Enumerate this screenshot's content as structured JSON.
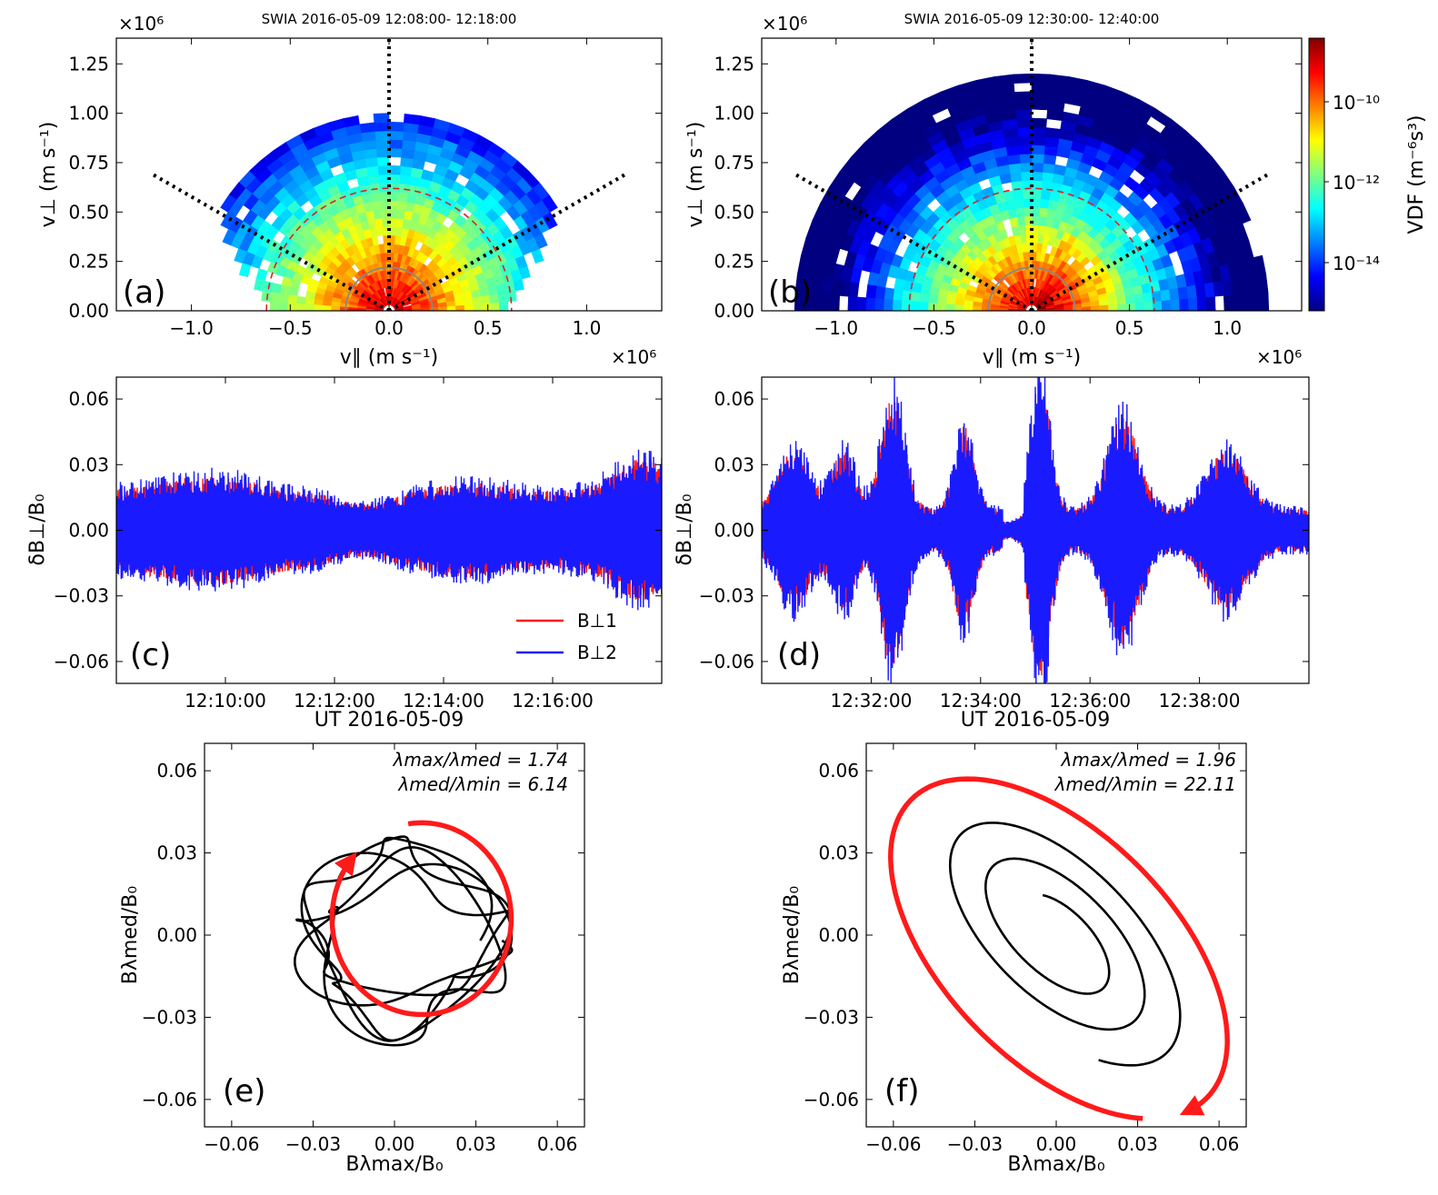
{
  "figure": {
    "panels": {
      "a": {
        "label": "(a)",
        "title": "SWIA 2016-05-09 12:08:00- 12:18:00",
        "xlabel": "v∥ (m s⁻¹)",
        "ylabel": "v⊥ (m s⁻¹)",
        "xscale": "×10⁶",
        "yscale": "×10⁶"
      },
      "b": {
        "label": "(b)",
        "title": "SWIA 2016-05-09 12:30:00- 12:40:00",
        "xlabel": "v∥ (m s⁻¹)",
        "ylabel": "v⊥ (m s⁻¹)",
        "xscale": "×10⁶",
        "yscale": "×10⁶",
        "colorbar_label": "VDF (m⁻⁶s³)",
        "colorbar_ticks": [
          "10⁻¹⁰",
          "10⁻¹²",
          "10⁻¹⁴"
        ]
      },
      "c": {
        "label": "(c)",
        "xlabel": "UT 2016-05-09",
        "ylabel": "δB⊥/B₀",
        "legend": [
          "B⊥1",
          "B⊥2"
        ]
      },
      "d": {
        "label": "(d)",
        "xlabel": "UT 2016-05-09",
        "ylabel": "δB⊥/B₀"
      },
      "e": {
        "label": "(e)",
        "xlabel": "Bλmax/B₀",
        "ylabel": "Bλmed/B₀",
        "annotation1": "λmax/λmed = 1.74",
        "annotation2": "λmed/λmin = 6.14"
      },
      "f": {
        "label": "(f)",
        "xlabel": "Bλmax/B₀",
        "ylabel": "Bλmed/B₀",
        "annotation1": "λmax/λmed = 1.96",
        "annotation2": "λmed/λmin = 22.11"
      }
    }
  },
  "chart_data": [
    {
      "panel": "a",
      "type": "heatmap",
      "title": "SWIA 2016-05-09 12:08:00- 12:18:00",
      "xlabel": "v∥ (m s⁻¹)",
      "ylabel": "v⊥ (m s⁻¹)",
      "x_ticks": [
        "−1.0",
        "−0.5",
        "0.0",
        "0.5",
        "1.0"
      ],
      "y_ticks": [
        "0.00",
        "0.25",
        "0.50",
        "0.75",
        "1.00",
        "1.25"
      ],
      "xlim": [
        -1.38,
        1.38
      ],
      "ylim": [
        0,
        1.38
      ],
      "scale_factor": "×10⁶",
      "max_speed": 1.0,
      "dashed_circle_radius": 0.62,
      "solid_circle_radius": 0.22,
      "dotted_line_angles_deg": [
        30,
        90,
        150
      ],
      "colormap": "jet",
      "color_scale": "log"
    },
    {
      "panel": "b",
      "type": "heatmap",
      "title": "SWIA 2016-05-09 12:30:00- 12:40:00",
      "xlabel": "v∥ (m s⁻¹)",
      "ylabel": "v⊥ (m s⁻¹)",
      "x_ticks": [
        "−1.0",
        "−0.5",
        "0.0",
        "0.5",
        "1.0"
      ],
      "y_ticks": [
        "0.00",
        "0.25",
        "0.50",
        "0.75",
        "1.00",
        "1.25"
      ],
      "xlim": [
        -1.38,
        1.38
      ],
      "ylim": [
        0,
        1.38
      ],
      "scale_factor": "×10⁶",
      "max_speed": 1.2,
      "dashed_circle_radius": 0.62,
      "solid_circle_radius": 0.22,
      "dotted_line_angles_deg": [
        30,
        90,
        150
      ],
      "colormap": "jet",
      "color_scale": "log",
      "colorbar_ticks": [
        "10⁻¹⁰",
        "10⁻¹²",
        "10⁻¹⁴"
      ]
    },
    {
      "panel": "c",
      "type": "line",
      "xlabel": "UT 2016-05-09",
      "ylabel": "δB⊥/B₀",
      "x_range": [
        "12:08:00",
        "12:18:00"
      ],
      "x_ticks": [
        "12:10:00",
        "12:12:00",
        "12:14:00",
        "12:16:00"
      ],
      "y_ticks": [
        "0.06",
        "0.03",
        "0.00",
        "−0.03",
        "−0.06"
      ],
      "ylim": [
        -0.07,
        0.07
      ],
      "legend_position": "lower right",
      "series": [
        {
          "name": "B⊥1",
          "color": "#ff1a1a",
          "envelope_max": 0.038
        },
        {
          "name": "B⊥2",
          "color": "#1a1aff",
          "envelope_max": 0.035
        }
      ]
    },
    {
      "panel": "d",
      "type": "line",
      "xlabel": "UT 2016-05-09",
      "ylabel": "δB⊥/B₀",
      "x_range": [
        "12:30:00",
        "12:40:00"
      ],
      "x_ticks": [
        "12:32:00",
        "12:34:00",
        "12:36:00",
        "12:38:00"
      ],
      "y_ticks": [
        "0.06",
        "0.03",
        "0.00",
        "−0.03",
        "−0.06"
      ],
      "ylim": [
        -0.07,
        0.07
      ],
      "series": [
        {
          "name": "B⊥1",
          "color": "#ff1a1a",
          "envelope_max": 0.062
        },
        {
          "name": "B⊥2",
          "color": "#1a1aff",
          "envelope_max": 0.06
        }
      ]
    },
    {
      "panel": "e",
      "type": "line",
      "xlabel": "Bλmax/B₀",
      "ylabel": "Bλmed/B₀",
      "x_ticks": [
        "−0.06",
        "−0.03",
        "0.00",
        "0.03",
        "0.06"
      ],
      "y_ticks": [
        "0.06",
        "0.03",
        "0.00",
        "−0.03",
        "−0.06"
      ],
      "xlim": [
        -0.07,
        0.07
      ],
      "ylim": [
        -0.07,
        0.07
      ],
      "hodogram": {
        "radius_x": 0.042,
        "radius_y": 0.038,
        "loops": 5,
        "color": "#000000"
      },
      "rotation_arrow": {
        "center": [
          0.01,
          0.006
        ],
        "radius_x": 0.033,
        "radius_y": 0.035,
        "color": "#ff1a1a",
        "direction": "clockwise"
      }
    },
    {
      "panel": "f",
      "type": "line",
      "xlabel": "Bλmax/B₀",
      "ylabel": "Bλmed/B₀",
      "x_ticks": [
        "−0.06",
        "−0.03",
        "0.00",
        "0.03",
        "0.06"
      ],
      "y_ticks": [
        "0.06",
        "0.03",
        "0.00",
        "−0.03",
        "−0.06"
      ],
      "xlim": [
        -0.07,
        0.07
      ],
      "ylim": [
        -0.07,
        0.07
      ],
      "hodogram": {
        "semi_major": 0.068,
        "semi_minor": 0.025,
        "tilt_deg": -45,
        "loops": 2.5,
        "color": "#000000"
      },
      "rotation_arrow": {
        "semi_major": 0.077,
        "semi_minor": 0.042,
        "tilt_deg": -45,
        "color": "#ff1a1a",
        "direction": "clockwise"
      }
    }
  ]
}
